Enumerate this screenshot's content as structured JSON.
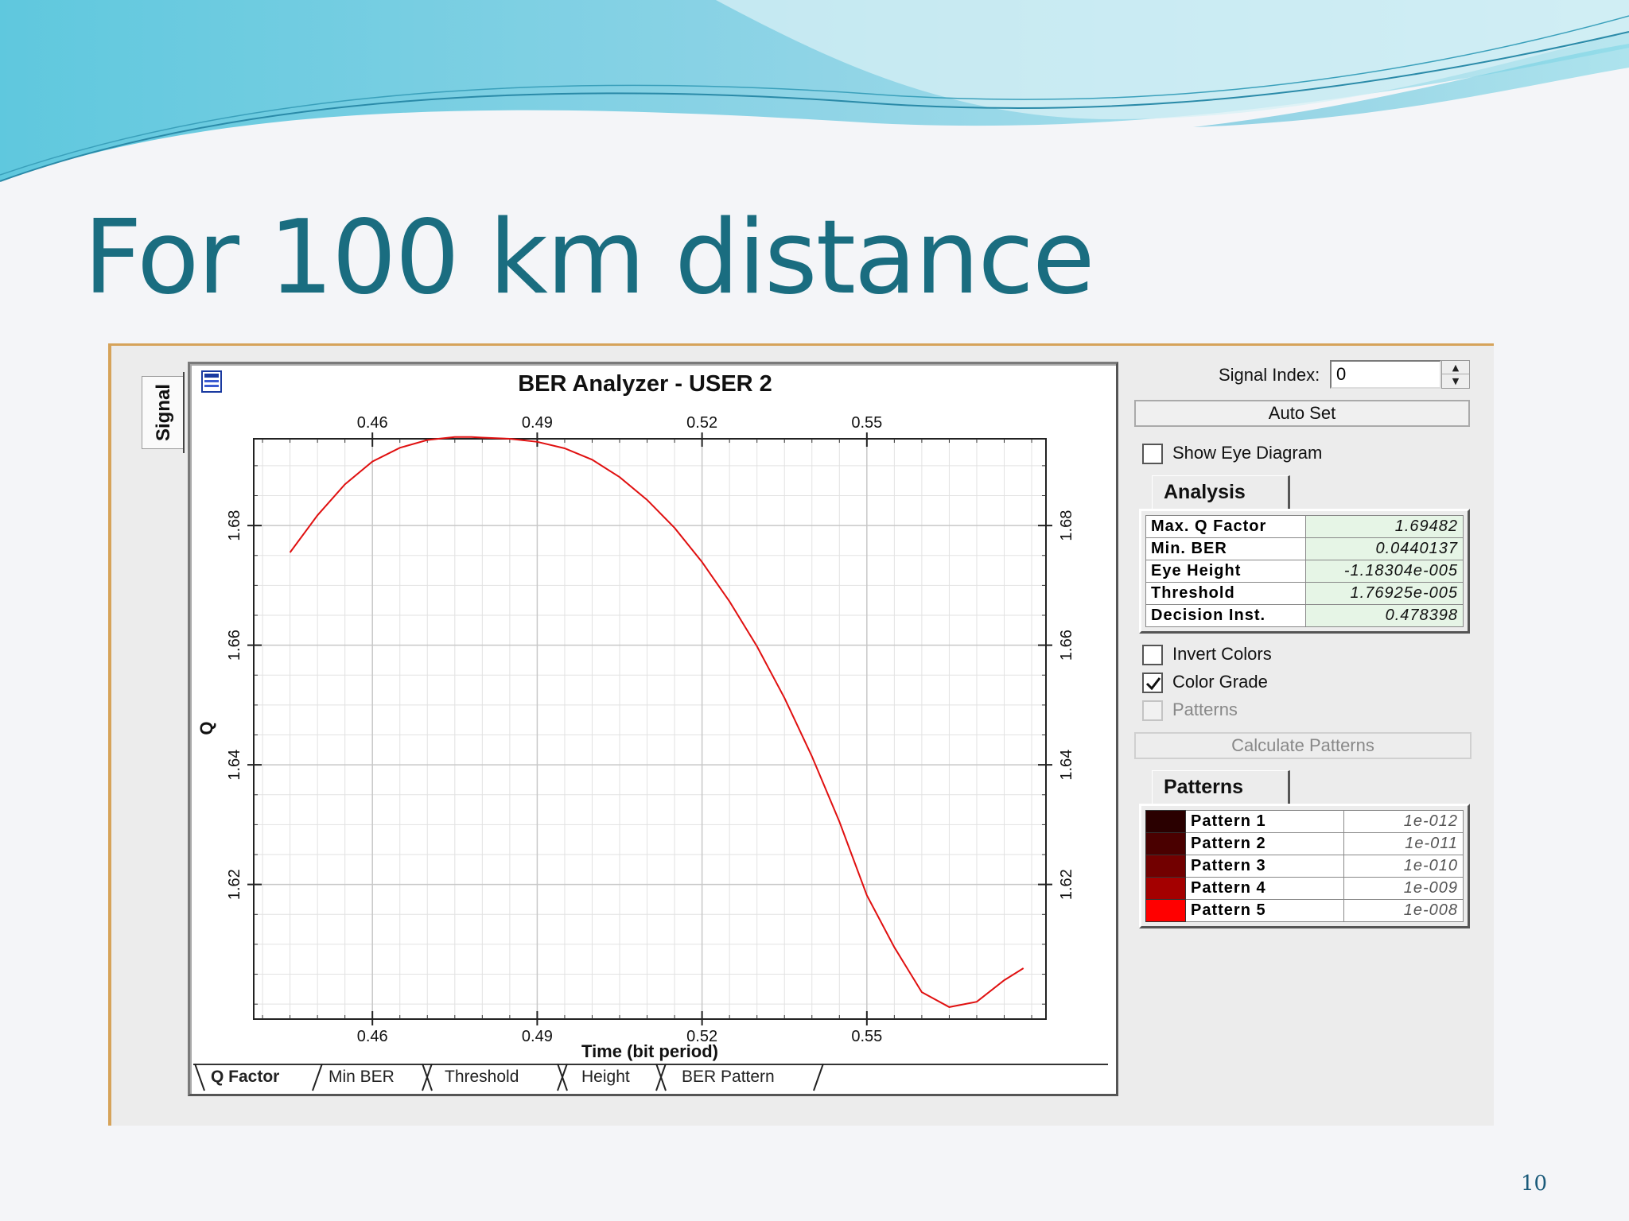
{
  "slide": {
    "title": "For 100 km distance",
    "page_number": "10"
  },
  "window": {
    "signal_tab": "Signal",
    "chart": {
      "title": "BER Analyzer - USER 2",
      "xlabel": "Time (bit period)",
      "ylabel": "Q",
      "x_ticks": [
        "0.46",
        "0.49",
        "0.52",
        "0.55"
      ],
      "y_ticks": [
        "1.68",
        "1.66",
        "1.64",
        "1.62"
      ]
    },
    "tabs": [
      "Q Factor",
      "Min BER",
      "Threshold",
      "Height",
      "BER Pattern"
    ],
    "active_tab": "Q Factor"
  },
  "controls": {
    "signal_index_label": "Signal Index:",
    "signal_index_value": "0",
    "auto_set_label": "Auto Set",
    "show_eye_diagram_label": "Show Eye Diagram",
    "show_eye_diagram_checked": false,
    "analysis_title": "Analysis",
    "analysis": [
      {
        "key": "Max. Q Factor",
        "value": "1.69482"
      },
      {
        "key": "Min. BER",
        "value": "0.0440137"
      },
      {
        "key": "Eye Height",
        "value": "-1.18304e-005"
      },
      {
        "key": "Threshold",
        "value": "1.76925e-005"
      },
      {
        "key": "Decision Inst.",
        "value": "0.478398"
      }
    ],
    "invert_colors_label": "Invert Colors",
    "invert_colors_checked": false,
    "color_grade_label": "Color Grade",
    "color_grade_checked": true,
    "patterns_checkbox_label": "Patterns",
    "patterns_checkbox_checked": false,
    "calculate_patterns_label": "Calculate Patterns",
    "patterns_title": "Patterns",
    "patterns": [
      {
        "name": "Pattern 1",
        "value": "1e-012",
        "color": "#2a0000"
      },
      {
        "name": "Pattern 2",
        "value": "1e-011",
        "color": "#4a0000"
      },
      {
        "name": "Pattern 3",
        "value": "1e-010",
        "color": "#720000"
      },
      {
        "name": "Pattern 4",
        "value": "1e-009",
        "color": "#a40000"
      },
      {
        "name": "Pattern 5",
        "value": "1e-008",
        "color": "#ff0000"
      }
    ]
  },
  "chart_data": {
    "type": "line",
    "title": "BER Analyzer - USER 2",
    "xlabel": "Time (bit period)",
    "ylabel": "Q",
    "xlim": [
      0.4384,
      0.5826
    ],
    "ylim": [
      1.5975,
      1.6945
    ],
    "x_ticks": [
      0.46,
      0.49,
      0.52,
      0.55
    ],
    "y_ticks": [
      1.62,
      1.64,
      1.66,
      1.68
    ],
    "grid": true,
    "series": [
      {
        "color": "#e01010",
        "x": [
          0.445,
          0.45,
          0.455,
          0.46,
          0.465,
          0.47,
          0.475,
          0.478,
          0.48,
          0.485,
          0.49,
          0.495,
          0.5,
          0.505,
          0.51,
          0.515,
          0.52,
          0.525,
          0.53,
          0.535,
          0.54,
          0.545,
          0.55,
          0.555,
          0.56,
          0.565,
          0.57,
          0.575,
          0.5785
        ],
        "values": [
          1.6755,
          1.6817,
          1.6869,
          1.6907,
          1.693,
          1.6943,
          1.6948,
          1.6948,
          1.6947,
          1.6945,
          1.694,
          1.6929,
          1.691,
          1.6881,
          1.6843,
          1.6796,
          1.6739,
          1.6673,
          1.6598,
          1.6512,
          1.6414,
          1.6305,
          1.6182,
          1.6095,
          1.602,
          1.5995,
          1.6004,
          1.604,
          1.606
        ]
      }
    ]
  }
}
